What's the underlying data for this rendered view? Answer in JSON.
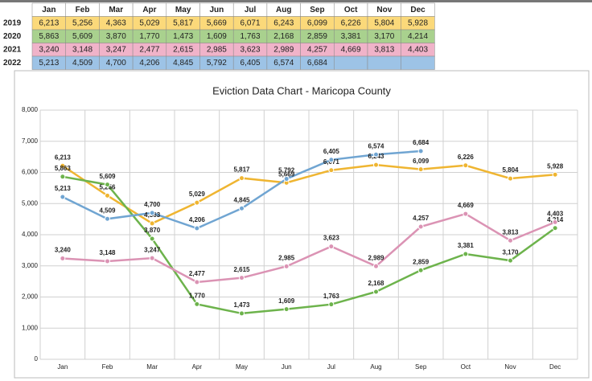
{
  "chart_data": {
    "type": "line",
    "title": "Eviction Data Chart - Maricopa County",
    "categories": [
      "Jan",
      "Feb",
      "Mar",
      "Apr",
      "May",
      "Jun",
      "Jul",
      "Aug",
      "Sep",
      "Oct",
      "Nov",
      "Dec"
    ],
    "ylim": [
      0,
      8000
    ],
    "yticks": [
      0,
      {
        "value": 1000,
        "label": "1,000"
      },
      {
        "value": 2000,
        "label": "2,000"
      },
      {
        "value": 3000,
        "label": "3,000"
      },
      {
        "value": 4000,
        "label": "4,000"
      },
      {
        "value": 5000,
        "label": "5,000"
      },
      {
        "value": 6000,
        "label": "6,000"
      },
      {
        "value": 7000,
        "label": "7,000"
      },
      {
        "value": 8000,
        "label": "8,000"
      }
    ],
    "grid": true,
    "series": [
      {
        "name": "2019",
        "color": "#efb531",
        "table_color": "#fbd97a",
        "values": [
          6213,
          5256,
          4363,
          5029,
          5817,
          5669,
          6071,
          6243,
          6099,
          6226,
          5804,
          5928
        ],
        "value_labels": [
          "6,213",
          "5,256",
          "4,363",
          "5,029",
          "5,817",
          "5,669",
          "6,071",
          "6,243",
          "6,099",
          "6,226",
          "5,804",
          "5,928"
        ]
      },
      {
        "name": "2020",
        "color": "#6db34c",
        "table_color": "#a9d18e",
        "values": [
          5863,
          5609,
          3870,
          1770,
          1473,
          1609,
          1763,
          2168,
          2859,
          3381,
          3170,
          4214
        ],
        "value_labels": [
          "5,863",
          "5,609",
          "3,870",
          "1,770",
          "1,473",
          "1,609",
          "1,763",
          "2,168",
          "2,859",
          "3,381",
          "3,170",
          "4,214"
        ]
      },
      {
        "name": "2021",
        "color": "#db93b4",
        "table_color": "#f0b3c9",
        "values": [
          3240,
          3148,
          3247,
          2477,
          2615,
          2985,
          3623,
          2989,
          4257,
          4669,
          3813,
          4403
        ],
        "value_labels": [
          "3,240",
          "3,148",
          "3,247",
          "2,477",
          "2,615",
          "2,985",
          "3,623",
          "2,989",
          "4,257",
          "4,669",
          "3,813",
          "4,403"
        ]
      },
      {
        "name": "2022",
        "color": "#70a5d2",
        "table_color": "#9dc3e6",
        "values": [
          5213,
          4509,
          4700,
          4206,
          4845,
          5792,
          6405,
          6574,
          6684,
          null,
          null,
          null
        ],
        "value_labels": [
          "5,213",
          "4,509",
          "4,700",
          "4,206",
          "4,845",
          "5,792",
          "6,405",
          "6,574",
          "6,684",
          null,
          null,
          null
        ]
      }
    ]
  }
}
